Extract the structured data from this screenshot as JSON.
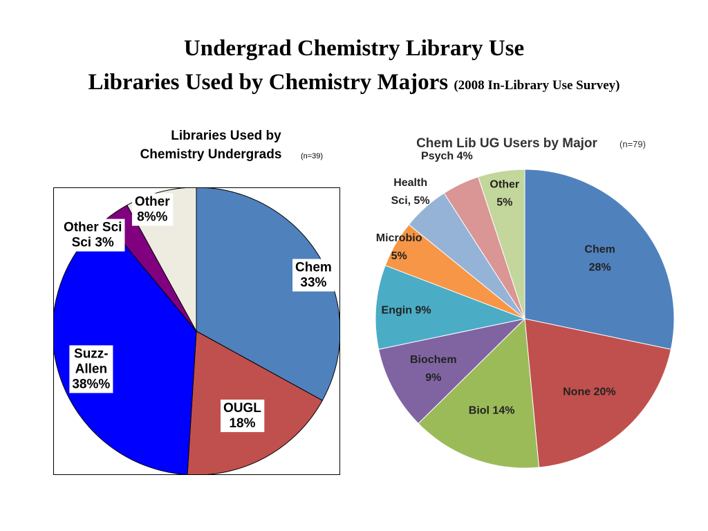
{
  "slide": {
    "title_line1": "Undergrad Chemistry Library Use",
    "title_line2": "Libraries Used by Chemistry Majors",
    "title_line2_note": "(2008 In-Library Use Survey)"
  },
  "chart_data": [
    {
      "type": "pie",
      "title_line1": "Libraries Used by",
      "title_line2": "Chemistry Undergrads",
      "title_note": "(n=39)",
      "slices": [
        {
          "label": "Chem",
          "text": "33%",
          "value": 33,
          "color": "#4F81BD"
        },
        {
          "label": "OUGL",
          "text": "18%",
          "value": 18,
          "color": "#C0504D"
        },
        {
          "label": "Suzz-Allen",
          "text": "38%%",
          "value": 38,
          "color": "#0000FF"
        },
        {
          "label": "Other Sci",
          "text": "3%",
          "value": 3,
          "color": "#800080"
        },
        {
          "label": "Other",
          "text": "8%%",
          "value": 8,
          "color": "#EEECE1"
        }
      ]
    },
    {
      "type": "pie",
      "title": "Chem Lib UG Users by Major",
      "title_note": "(n=79)",
      "slices": [
        {
          "label": "Chem",
          "text": "28%",
          "value": 28,
          "color": "#4F81BD"
        },
        {
          "label": "None",
          "text": "20%",
          "value": 20,
          "color": "#C0504D"
        },
        {
          "label": "Biol",
          "text": "14%",
          "value": 14,
          "color": "#9BBB59"
        },
        {
          "label": "Biochem",
          "text": "9%",
          "value": 9,
          "color": "#8064A2"
        },
        {
          "label": "Engin",
          "text": "9%",
          "value": 9,
          "color": "#4BACC6"
        },
        {
          "label": "Microbio",
          "text": "5%",
          "value": 5,
          "color": "#F79646"
        },
        {
          "label": "Health Sci,",
          "text": "5%",
          "value": 5,
          "color": "#95B3D7"
        },
        {
          "label": "Psych",
          "text": "4%",
          "value": 4,
          "color": "#D99694"
        },
        {
          "label": "Other",
          "text": "5%",
          "value": 5,
          "color": "#C3D69B"
        }
      ]
    }
  ]
}
